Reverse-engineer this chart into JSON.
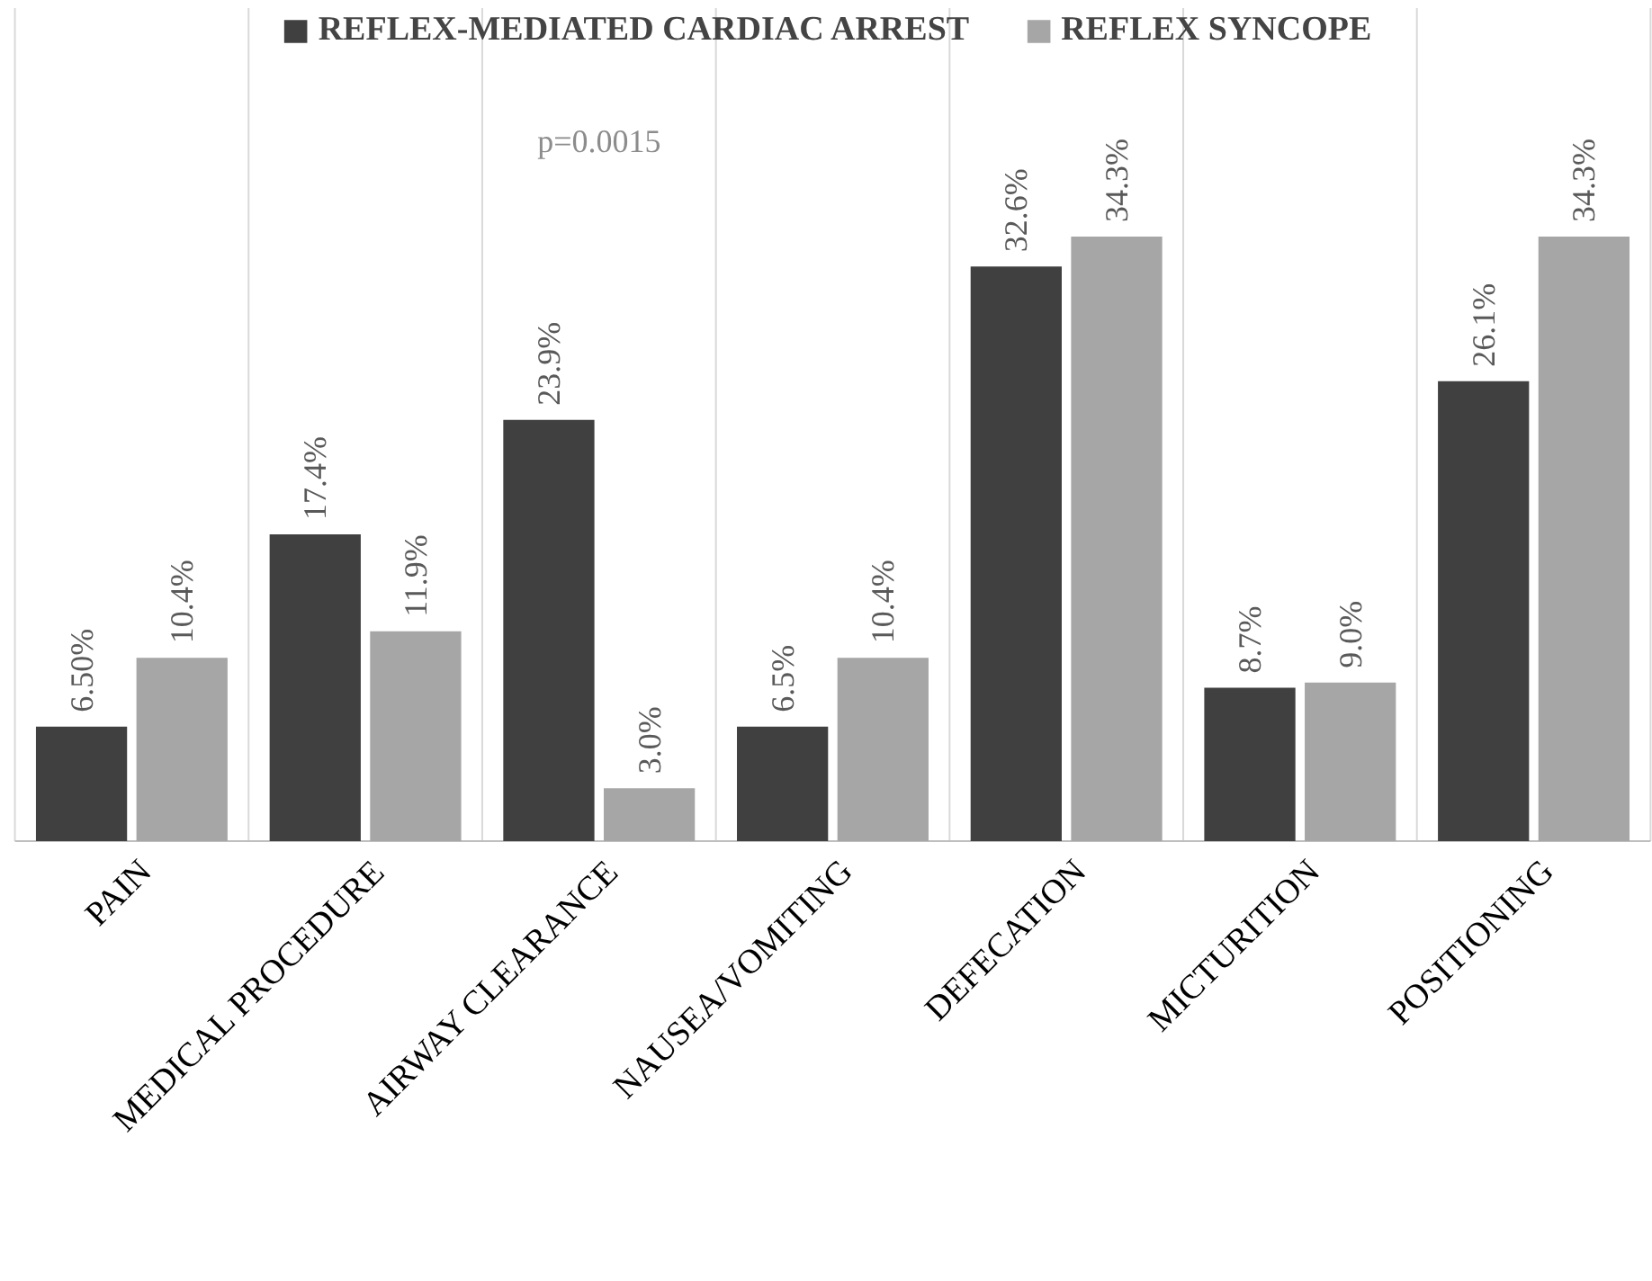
{
  "chart_data": {
    "type": "bar",
    "categories": [
      "PAIN",
      "MEDICAL PROCEDURE",
      "AIRWAY CLEARANCE",
      "NAUSEA/VOMITING",
      "DEFECATION",
      "MICTURITION",
      "POSITIONING"
    ],
    "series": [
      {
        "name": "REFLEX-MEDIATED CARDIAC ARREST",
        "color": "#404040",
        "values": [
          6.5,
          17.4,
          23.9,
          6.5,
          32.6,
          8.7,
          26.1
        ],
        "value_labels": [
          "6.50%",
          "17.4%",
          "23.9%",
          "6.5%",
          "32.6%",
          "8.7%",
          "26.1%"
        ]
      },
      {
        "name": "REFLEX SYNCOPE",
        "color": "#a6a6a6",
        "values": [
          10.4,
          11.9,
          3.0,
          10.4,
          34.3,
          9.0,
          34.3
        ],
        "value_labels": [
          "10.4%",
          "11.9%",
          "3.0%",
          "10.4%",
          "34.3%",
          "9.0%",
          "34.3%"
        ]
      }
    ],
    "annotations": [
      "p=0.0015"
    ],
    "grid": "x",
    "legend": "top"
  }
}
